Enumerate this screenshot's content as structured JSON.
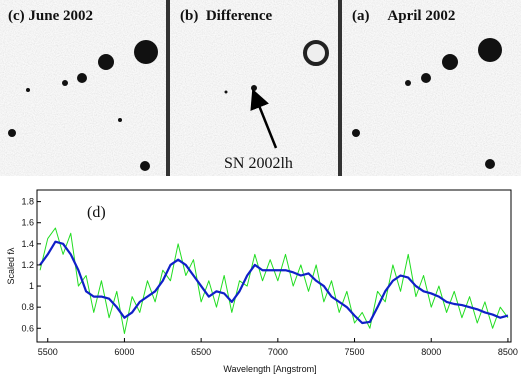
{
  "panels": [
    {
      "label": "(c) June 2002"
    },
    {
      "label": "(b)  Difference",
      "annotation": "SN 2002lh"
    },
    {
      "label": "(a)     April 2002"
    }
  ],
  "chart_data": {
    "type": "line",
    "panel_label": "(d)",
    "xlabel": "Wavelength [Angstrom]",
    "ylabel": "Scaled fλ",
    "xlim": [
      5430,
      8520
    ],
    "ylim": [
      0.47,
      1.91
    ],
    "xticks": [
      5500,
      6000,
      6500,
      7000,
      7500,
      8000,
      8500
    ],
    "yticks": [
      0.6,
      0.8,
      1,
      1.2,
      1.4,
      1.6,
      1.8
    ],
    "x": [
      5450,
      5500,
      5550,
      5600,
      5650,
      5700,
      5750,
      5800,
      5850,
      5900,
      5950,
      6000,
      6050,
      6100,
      6150,
      6200,
      6250,
      6300,
      6350,
      6400,
      6450,
      6500,
      6550,
      6600,
      6650,
      6700,
      6750,
      6800,
      6850,
      6900,
      6950,
      7000,
      7050,
      7100,
      7150,
      7200,
      7250,
      7300,
      7350,
      7400,
      7450,
      7500,
      7550,
      7600,
      7650,
      7700,
      7750,
      7800,
      7850,
      7900,
      7950,
      8000,
      8050,
      8100,
      8150,
      8200,
      8250,
      8300,
      8350,
      8400,
      8450,
      8500
    ],
    "series": [
      {
        "color": "#22dd22",
        "values": [
          1.15,
          1.45,
          1.55,
          1.3,
          1.5,
          1.0,
          1.1,
          0.75,
          1.05,
          0.7,
          0.95,
          0.55,
          0.9,
          0.75,
          1.05,
          0.85,
          1.15,
          1.05,
          1.4,
          1.1,
          1.25,
          0.85,
          1.05,
          0.8,
          1.1,
          0.75,
          1.05,
          1.0,
          1.3,
          1.05,
          1.25,
          1.05,
          1.3,
          1.0,
          1.2,
          0.95,
          1.2,
          0.85,
          1.05,
          0.75,
          0.95,
          0.65,
          0.75,
          0.6,
          0.95,
          0.85,
          1.2,
          0.95,
          1.3,
          0.9,
          1.1,
          0.8,
          1.0,
          0.75,
          0.95,
          0.7,
          0.9,
          0.65,
          0.85,
          0.6,
          0.8,
          0.7
        ]
      },
      {
        "color": "#1020c8",
        "values": [
          1.2,
          1.3,
          1.42,
          1.4,
          1.3,
          1.15,
          0.95,
          0.9,
          0.9,
          0.88,
          0.8,
          0.7,
          0.75,
          0.85,
          0.9,
          0.95,
          1.05,
          1.2,
          1.25,
          1.2,
          1.1,
          1.0,
          0.9,
          0.95,
          0.93,
          0.85,
          0.95,
          1.1,
          1.2,
          1.15,
          1.15,
          1.15,
          1.15,
          1.13,
          1.1,
          1.12,
          1.05,
          1.0,
          0.9,
          0.85,
          0.8,
          0.72,
          0.65,
          0.66,
          0.8,
          0.95,
          1.05,
          1.1,
          1.08,
          1.0,
          0.95,
          0.93,
          0.9,
          0.85,
          0.83,
          0.82,
          0.8,
          0.78,
          0.75,
          0.73,
          0.7,
          0.72
        ]
      }
    ]
  }
}
